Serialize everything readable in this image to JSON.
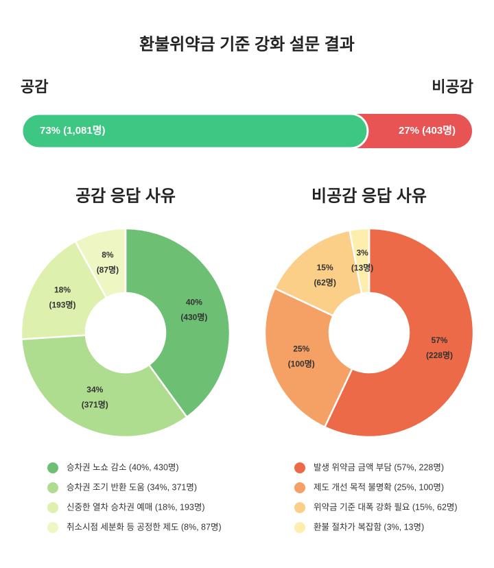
{
  "title": "환불위약금 기준 강화 설문 결과",
  "chart_data": [
    {
      "type": "stacked-bar",
      "series": [
        {
          "name": "공감",
          "color": "#3ec683",
          "values": [
            73
          ],
          "value_labels": [
            "73% (1,081명)"
          ]
        },
        {
          "name": "비공감",
          "color": "#e85454",
          "values": [
            27
          ],
          "value_labels": [
            "27% (403명)"
          ]
        }
      ]
    },
    {
      "type": "pie",
      "title": "공감 응답 사유",
      "categories": [
        "승차권 노쇼 감소 (40%, 430명)",
        "승차권 조기 반환 도움 (34%, 371명)",
        "신중한 열차 승차권 예매 (18%, 193명)",
        "취소시점 세분화 등 공정한 제도 (8%, 87명)"
      ],
      "values": [
        40,
        34,
        18,
        8
      ],
      "value_labels": [
        "40%",
        "34%",
        "18%",
        "8%"
      ],
      "sub_labels": [
        "(430명)",
        "(371명)",
        "(193명)",
        "(87명)"
      ],
      "colors": [
        "#6dbf73",
        "#aedd8f",
        "#ddf0ad",
        "#eef7c4"
      ]
    },
    {
      "type": "pie",
      "title": "비공감 응답 사유",
      "categories": [
        "발생 위약금 금액 부담 (57%, 228명)",
        "제도 개선 목적 불명확 (25%, 100명)",
        "위약금 기준 대폭 강화 필요 (15%, 62명)",
        "환불 절차가 복잡함 (3%, 13명)"
      ],
      "values": [
        57,
        25,
        15,
        3
      ],
      "value_labels": [
        "57%",
        "25%",
        "15%",
        "3%"
      ],
      "sub_labels": [
        "(228명)",
        "(100명)",
        "(62명)",
        "(13명)"
      ],
      "colors": [
        "#ec6a47",
        "#f5a064",
        "#fbcf88",
        "#fdeeae"
      ]
    }
  ]
}
